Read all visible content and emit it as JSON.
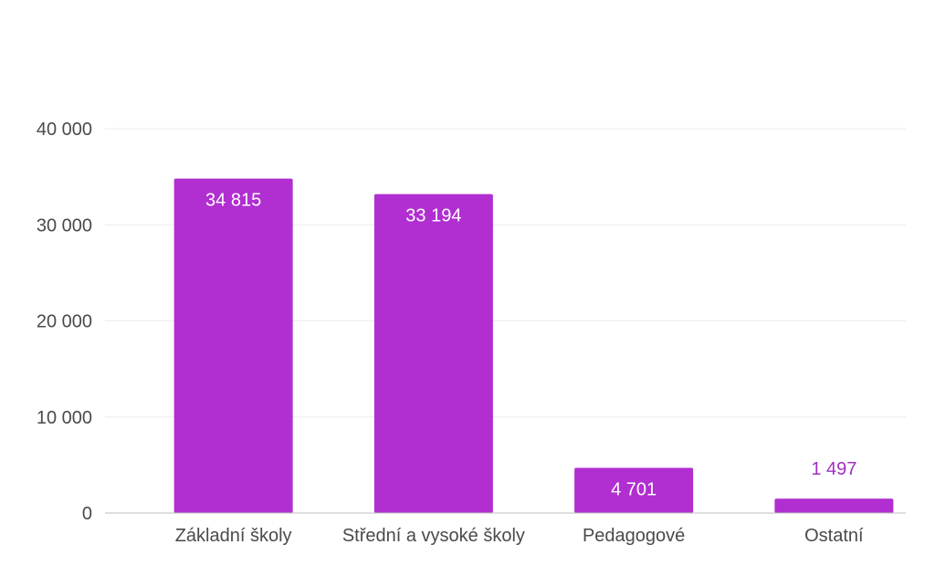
{
  "chart_data": {
    "type": "bar",
    "categories": [
      "Základní školy",
      "Střední a vysoké školy",
      "Pedagogové",
      "Ostatní"
    ],
    "values": [
      34815,
      33194,
      4701,
      1497
    ],
    "value_labels": [
      "34 815",
      "33 194",
      "4 701",
      "1 497"
    ],
    "ylim": [
      0,
      40000
    ],
    "yticks": [
      0,
      10000,
      20000,
      30000,
      40000
    ],
    "ytick_labels": [
      "0",
      "10 000",
      "20 000",
      "30 000",
      "40 000"
    ],
    "title": "",
    "xlabel": "",
    "ylabel": "",
    "grid": true,
    "legend": "none",
    "colors": {
      "bar": "#b12ed1",
      "label_inside": "#ffffff",
      "label_outside": "#a22fc4"
    }
  }
}
